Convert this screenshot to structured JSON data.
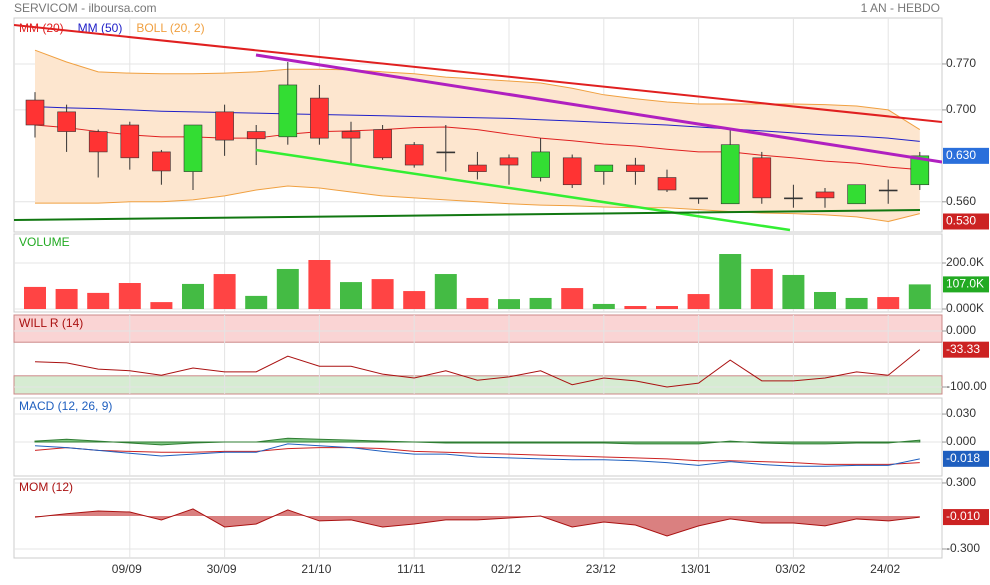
{
  "header": {
    "title": "SERVICOM - ilboursa.com",
    "period": "1 AN - HEBDO"
  },
  "chart_data": [
    {
      "type": "candlestick",
      "ylim": [
        0.514,
        0.84
      ],
      "yticks": [
        {
          "value": 0.77,
          "label": "0.770"
        },
        {
          "value": 0.7,
          "label": "0.700"
        },
        {
          "value": 0.56,
          "label": "0.560"
        }
      ],
      "grid": true,
      "up_color": "#33dd33",
      "down_color": "#ff3333",
      "doji_color": "#333333",
      "open": [
        0.715,
        0.697,
        0.667,
        0.677,
        0.636,
        0.606,
        0.697,
        0.667,
        0.659,
        0.718,
        0.667,
        0.67,
        0.647,
        0.636,
        0.616,
        0.627,
        0.597,
        0.627,
        0.606,
        0.616,
        0.597,
        0.566,
        0.557,
        0.627,
        0.566,
        0.575,
        0.557,
        0.578,
        0.586
      ],
      "high": [
        0.727,
        0.708,
        0.67,
        0.682,
        0.639,
        0.677,
        0.708,
        0.677,
        0.773,
        0.738,
        0.682,
        0.677,
        0.651,
        0.677,
        0.636,
        0.632,
        0.657,
        0.632,
        0.616,
        0.627,
        0.609,
        0.566,
        0.67,
        0.636,
        0.586,
        0.581,
        0.586,
        0.594,
        0.636
      ],
      "low": [
        0.658,
        0.636,
        0.597,
        0.609,
        0.586,
        0.578,
        0.63,
        0.616,
        0.647,
        0.647,
        0.616,
        0.624,
        0.612,
        0.606,
        0.594,
        0.586,
        0.591,
        0.581,
        0.586,
        0.586,
        0.575,
        0.557,
        0.557,
        0.557,
        0.551,
        0.551,
        0.557,
        0.557,
        0.578
      ],
      "close": [
        0.677,
        0.667,
        0.636,
        0.627,
        0.607,
        0.677,
        0.654,
        0.656,
        0.738,
        0.657,
        0.657,
        0.627,
        0.616,
        0.636,
        0.606,
        0.616,
        0.636,
        0.586,
        0.616,
        0.606,
        0.578,
        0.566,
        0.647,
        0.566,
        0.566,
        0.566,
        0.586,
        0.578,
        0.63
      ],
      "last_label": "0.630",
      "last_color": "#2a6fdb",
      "marker": {
        "value": 0.53,
        "label": "0.530",
        "color": "#cc2222"
      },
      "series": [
        {
          "name": "MM (20)",
          "color": "#e02020",
          "values": [
            0.677,
            0.673,
            0.667,
            0.662,
            0.659,
            0.659,
            0.657,
            0.657,
            0.663,
            0.667,
            0.668,
            0.67,
            0.673,
            0.674,
            0.67,
            0.663,
            0.657,
            0.653,
            0.648,
            0.645,
            0.64,
            0.636,
            0.636,
            0.631,
            0.627,
            0.622,
            0.619,
            0.613,
            0.609
          ]
        },
        {
          "name": "MM (50)",
          "color": "#2020c8",
          "values": [
            0.705,
            0.703,
            0.702,
            0.7,
            0.698,
            0.697,
            0.696,
            0.695,
            0.694,
            0.693,
            0.692,
            0.691,
            0.69,
            0.689,
            0.688,
            0.687,
            0.685,
            0.683,
            0.681,
            0.679,
            0.677,
            0.674,
            0.671,
            0.668,
            0.665,
            0.662,
            0.66,
            0.657,
            0.652
          ]
        },
        {
          "name": "BOLL (20, 2)",
          "color": "#f0a040",
          "fill": "#fde6cf",
          "upper": [
            0.791,
            0.773,
            0.758,
            0.756,
            0.755,
            0.755,
            0.756,
            0.758,
            0.762,
            0.762,
            0.761,
            0.758,
            0.755,
            0.75,
            0.747,
            0.744,
            0.741,
            0.733,
            0.723,
            0.717,
            0.712,
            0.709,
            0.709,
            0.709,
            0.709,
            0.708,
            0.706,
            0.7,
            0.67
          ],
          "lower": [
            0.558,
            0.558,
            0.558,
            0.56,
            0.56,
            0.563,
            0.569,
            0.578,
            0.584,
            0.581,
            0.575,
            0.569,
            0.566,
            0.563,
            0.56,
            0.557,
            0.555,
            0.554,
            0.552,
            0.551,
            0.551,
            0.548,
            0.545,
            0.543,
            0.542,
            0.54,
            0.537,
            0.53,
            0.542
          ]
        }
      ]
    },
    {
      "type": "bar",
      "title": "VOLUME",
      "title_color": "#22aa22",
      "ylim": [
        -13,
        326
      ],
      "yticks": [
        {
          "value": 200,
          "label": "200.0K"
        },
        {
          "value": 0,
          "label": "0.000K"
        }
      ],
      "grid": true,
      "values": [
        96,
        87,
        70,
        113,
        30,
        109,
        152,
        57,
        174,
        213,
        117,
        130,
        78,
        152,
        48,
        43,
        48,
        91,
        22,
        13,
        13,
        65,
        239,
        174,
        148,
        74,
        48,
        52,
        107
      ],
      "colors": [
        "#ff4444",
        "#ff4444",
        "#ff4444",
        "#ff4444",
        "#ff4444",
        "#44bb44",
        "#ff4444",
        "#44bb44",
        "#44bb44",
        "#ff4444",
        "#44bb44",
        "#ff4444",
        "#ff4444",
        "#44bb44",
        "#ff4444",
        "#44bb44",
        "#44bb44",
        "#ff4444",
        "#44bb44",
        "#ff4444",
        "#ff4444",
        "#ff4444",
        "#44bb44",
        "#ff4444",
        "#44bb44",
        "#44bb44",
        "#44bb44",
        "#ff4444",
        "#44bb44"
      ],
      "last_label": "107.0K",
      "last_color": "#22aa22"
    },
    {
      "type": "line",
      "title": "WILL R (14)",
      "title_color": "#aa1111",
      "color": "#aa1111",
      "ylim": [
        -112.5,
        28.6
      ],
      "yticks": [
        {
          "value": 0,
          "label": "0.000"
        },
        {
          "value": -100,
          "label": "-100.00"
        }
      ],
      "grid": true,
      "zones": [
        {
          "from": 28.6,
          "to": -20,
          "color": "#fad4d4"
        },
        {
          "from": -80,
          "to": -112.5,
          "color": "#d6ecd2"
        }
      ],
      "values": [
        -55,
        -57,
        -68,
        -71,
        -79,
        -66,
        -73,
        -73,
        -45,
        -63,
        -63,
        -77,
        -84,
        -71,
        -88,
        -82,
        -71,
        -96,
        -84,
        -89,
        -100,
        -93,
        -52,
        -89,
        -89,
        -84,
        -73,
        -79,
        -33.33
      ],
      "last_color": "#cc2222"
    },
    {
      "type": "macd",
      "title": "MACD (12, 26, 9)",
      "title_color": "#1f5fbf",
      "ylim": [
        -0.0364,
        0.0472
      ],
      "yticks": [
        {
          "value": 0.03,
          "label": "0.030"
        },
        {
          "value": 0,
          "label": "0.000"
        }
      ],
      "grid": true,
      "macd": [
        -0.004,
        -0.006,
        -0.009,
        -0.012,
        -0.015,
        -0.013,
        -0.011,
        -0.011,
        -0.002,
        -0.004,
        -0.006,
        -0.01,
        -0.013,
        -0.013,
        -0.016,
        -0.017,
        -0.018,
        -0.019,
        -0.019,
        -0.02,
        -0.022,
        -0.025,
        -0.021,
        -0.024,
        -0.026,
        -0.026,
        -0.025,
        -0.025,
        -0.018
      ],
      "signal": [
        -0.009,
        -0.006,
        -0.009,
        -0.01,
        -0.011,
        -0.011,
        -0.01,
        -0.01,
        -0.007,
        -0.006,
        -0.006,
        -0.007,
        -0.01,
        -0.011,
        -0.012,
        -0.013,
        -0.014,
        -0.015,
        -0.016,
        -0.017,
        -0.018,
        -0.02,
        -0.02,
        -0.021,
        -0.022,
        -0.024,
        -0.024,
        -0.024,
        -0.022
      ],
      "histogram": [
        0.001,
        0.003,
        0.001,
        -0.001,
        -0.003,
        -0.001,
        0,
        0,
        0.004,
        0.003,
        0.002,
        0.001,
        0,
        -0.001,
        -0.001,
        -0.001,
        -0.001,
        -0.001,
        -0.001,
        -0.002,
        -0.002,
        -0.002,
        0.001,
        -0.001,
        -0.002,
        -0.002,
        -0.001,
        -0.001,
        0.002
      ],
      "macd_color": "#1f5fbf",
      "signal_color": "#cc2222",
      "hist_color": "#4caf50",
      "last_color": "#1f5fbf"
    },
    {
      "type": "area",
      "title": "MOM (12)",
      "title_color": "#aa1111",
      "color": "#aa1111",
      "fill": "#d46a6a",
      "ylim": [
        -0.382,
        0.336
      ],
      "yticks": [
        {
          "value": 0.3,
          "label": "0.300"
        },
        {
          "value": -0.3,
          "label": "-0.300"
        }
      ],
      "grid": true,
      "values": [
        -0.01,
        0.02,
        0.045,
        0.036,
        -0.036,
        0.064,
        -0.1,
        -0.073,
        0.055,
        -0.045,
        -0.036,
        -0.1,
        -0.073,
        -0.036,
        -0.036,
        -0.018,
        0,
        -0.1,
        -0.055,
        -0.082,
        -0.182,
        -0.09,
        -0.027,
        -0.064,
        -0.064,
        -0.09,
        -0.027,
        -0.045,
        -0.01
      ],
      "last_label": "-0.010",
      "last_color": "#cc2222",
      "categories": [
        null,
        null,
        null,
        "09/09",
        null,
        null,
        "30/09",
        null,
        null,
        "21/10",
        null,
        null,
        "11/11",
        null,
        null,
        "02/12",
        null,
        null,
        "23/12",
        null,
        null,
        "13/01",
        null,
        null,
        "03/02",
        null,
        null,
        "24/02",
        null
      ]
    }
  ]
}
